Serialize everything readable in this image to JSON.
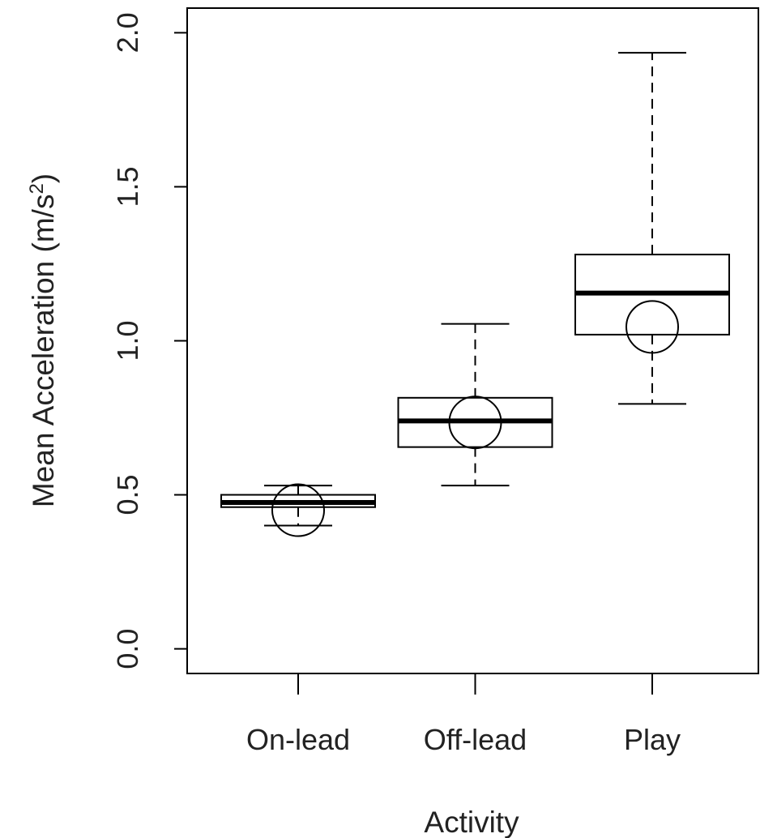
{
  "chart_data": {
    "type": "boxplot",
    "title": "",
    "xlabel": "Activity",
    "ylabel": {
      "text": "Mean Acceleration (m/s",
      "superscript": "2",
      "suffix": ")"
    },
    "ylim": [
      -0.08,
      2.08
    ],
    "yticks": [
      0.0,
      0.5,
      1.0,
      1.5,
      2.0
    ],
    "ytick_labels": [
      "0.0",
      "0.5",
      "1.0",
      "1.5",
      "2.0"
    ],
    "grid": false,
    "legend": "none",
    "categories": [
      "On-lead",
      "Off-lead",
      "Play"
    ],
    "boxes": [
      {
        "category": "On-lead",
        "whisker_low": 0.4,
        "q1": 0.46,
        "median": 0.475,
        "q3": 0.5,
        "whisker_high": 0.53,
        "mean": 0.45
      },
      {
        "category": "Off-lead",
        "whisker_low": 0.53,
        "q1": 0.655,
        "median": 0.74,
        "q3": 0.815,
        "whisker_high": 1.055,
        "mean": 0.735
      },
      {
        "category": "Play",
        "whisker_low": 0.795,
        "q1": 1.02,
        "median": 1.155,
        "q3": 1.28,
        "whisker_high": 1.935,
        "mean": 1.045
      }
    ],
    "colors": {
      "stroke": "#000000",
      "text": "#222222",
      "background": "#ffffff"
    }
  }
}
